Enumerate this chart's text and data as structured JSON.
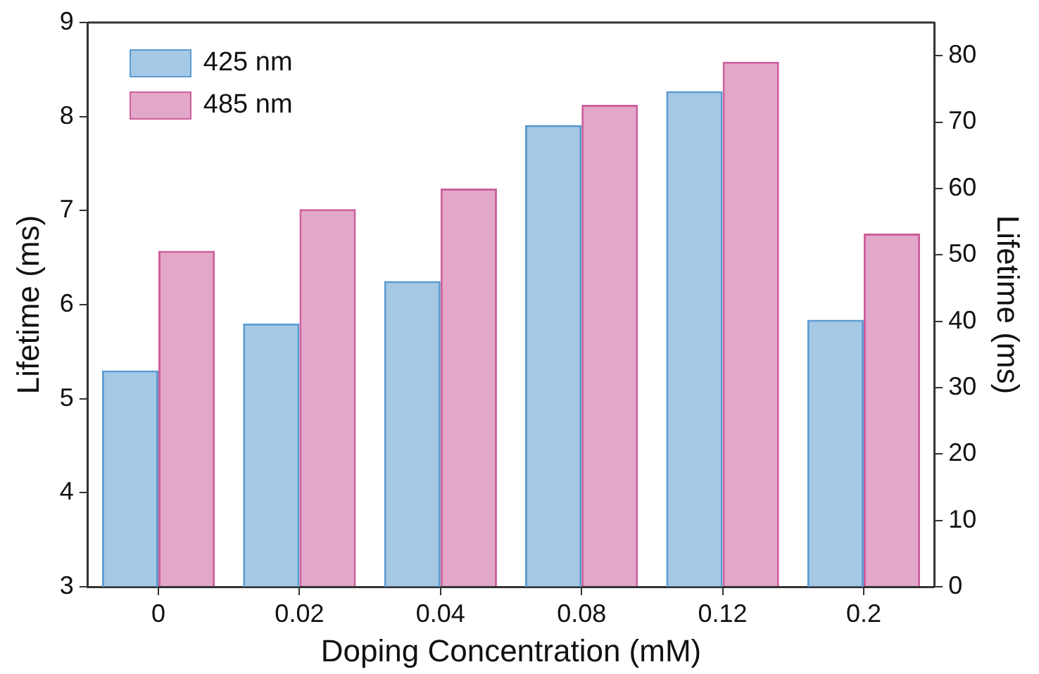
{
  "chart_data": {
    "type": "bar",
    "xlabel": "Doping Concentration (mM)",
    "ylabel": "Lifetime (ms)",
    "y2label": "Lifetime (ms)",
    "categories": [
      "0",
      "0.02",
      "0.04",
      "0.08",
      "0.12",
      "0.2"
    ],
    "series": [
      {
        "name": "425 nm",
        "color": "#5b9bd0",
        "values": [
          5.3,
          5.8,
          6.25,
          7.91,
          8.27,
          5.84
        ]
      },
      {
        "name": "485 nm",
        "color": "#cc5f9c",
        "axis": "y2",
        "values": [
          50.6,
          56.9,
          60.0,
          72.6,
          79.1,
          53.2
        ]
      }
    ],
    "ylim": [
      3,
      9
    ],
    "yticks": [
      3,
      4,
      5,
      6,
      7,
      8,
      9
    ],
    "y2lim": [
      0,
      85
    ],
    "y2ticks": [
      0,
      10,
      20,
      30,
      40,
      50,
      60,
      70,
      80
    ],
    "grid": false,
    "legend": "top left"
  }
}
